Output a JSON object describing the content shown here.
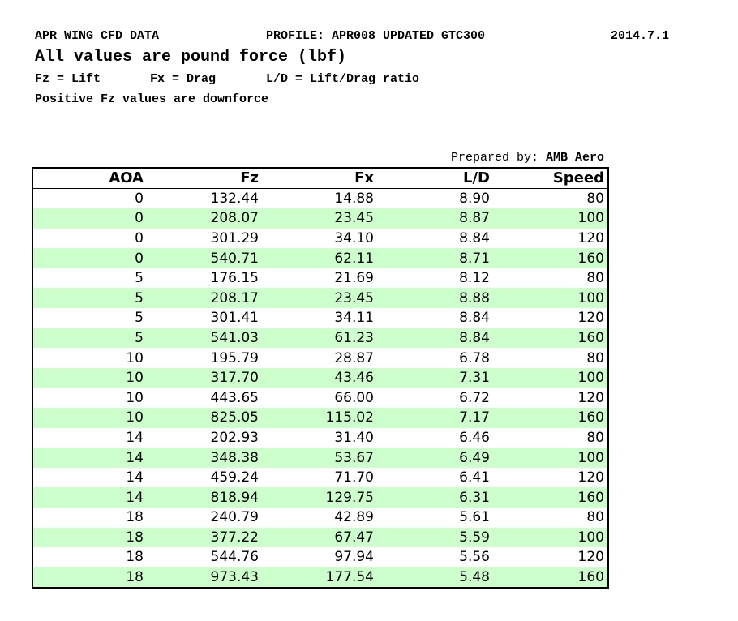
{
  "header": {
    "title": "APR WING CFD DATA",
    "profile": "PROFILE: APR008 UPDATED GTC300",
    "date": "2014.7.1",
    "units": "All values are pound force (lbf)",
    "legend": [
      "Fz = Lift",
      "Fx = Drag",
      "L/D = Lift/Drag ratio"
    ],
    "note": "Positive Fz values are downforce"
  },
  "prepared": {
    "label": "Prepared by:",
    "name": "AMB Aero"
  },
  "table": {
    "columns": [
      "AOA",
      "Fz",
      "Fx",
      "L/D",
      "Speed"
    ],
    "rows": [
      [
        "0",
        "132.44",
        "14.88",
        "8.90",
        "80"
      ],
      [
        "0",
        "208.07",
        "23.45",
        "8.87",
        "100"
      ],
      [
        "0",
        "301.29",
        "34.10",
        "8.84",
        "120"
      ],
      [
        "0",
        "540.71",
        "62.11",
        "8.71",
        "160"
      ],
      [
        "5",
        "176.15",
        "21.69",
        "8.12",
        "80"
      ],
      [
        "5",
        "208.17",
        "23.45",
        "8.88",
        "100"
      ],
      [
        "5",
        "301.41",
        "34.11",
        "8.84",
        "120"
      ],
      [
        "5",
        "541.03",
        "61.23",
        "8.84",
        "160"
      ],
      [
        "10",
        "195.79",
        "28.87",
        "6.78",
        "80"
      ],
      [
        "10",
        "317.70",
        "43.46",
        "7.31",
        "100"
      ],
      [
        "10",
        "443.65",
        "66.00",
        "6.72",
        "120"
      ],
      [
        "10",
        "825.05",
        "115.02",
        "7.17",
        "160"
      ],
      [
        "14",
        "202.93",
        "31.40",
        "6.46",
        "80"
      ],
      [
        "14",
        "348.38",
        "53.67",
        "6.49",
        "100"
      ],
      [
        "14",
        "459.24",
        "71.70",
        "6.41",
        "120"
      ],
      [
        "14",
        "818.94",
        "129.75",
        "6.31",
        "160"
      ],
      [
        "18",
        "240.79",
        "42.89",
        "5.61",
        "80"
      ],
      [
        "18",
        "377.22",
        "67.47",
        "5.59",
        "100"
      ],
      [
        "18",
        "544.76",
        "97.94",
        "5.56",
        "120"
      ],
      [
        "18",
        "973.43",
        "177.54",
        "5.48",
        "160"
      ]
    ]
  }
}
